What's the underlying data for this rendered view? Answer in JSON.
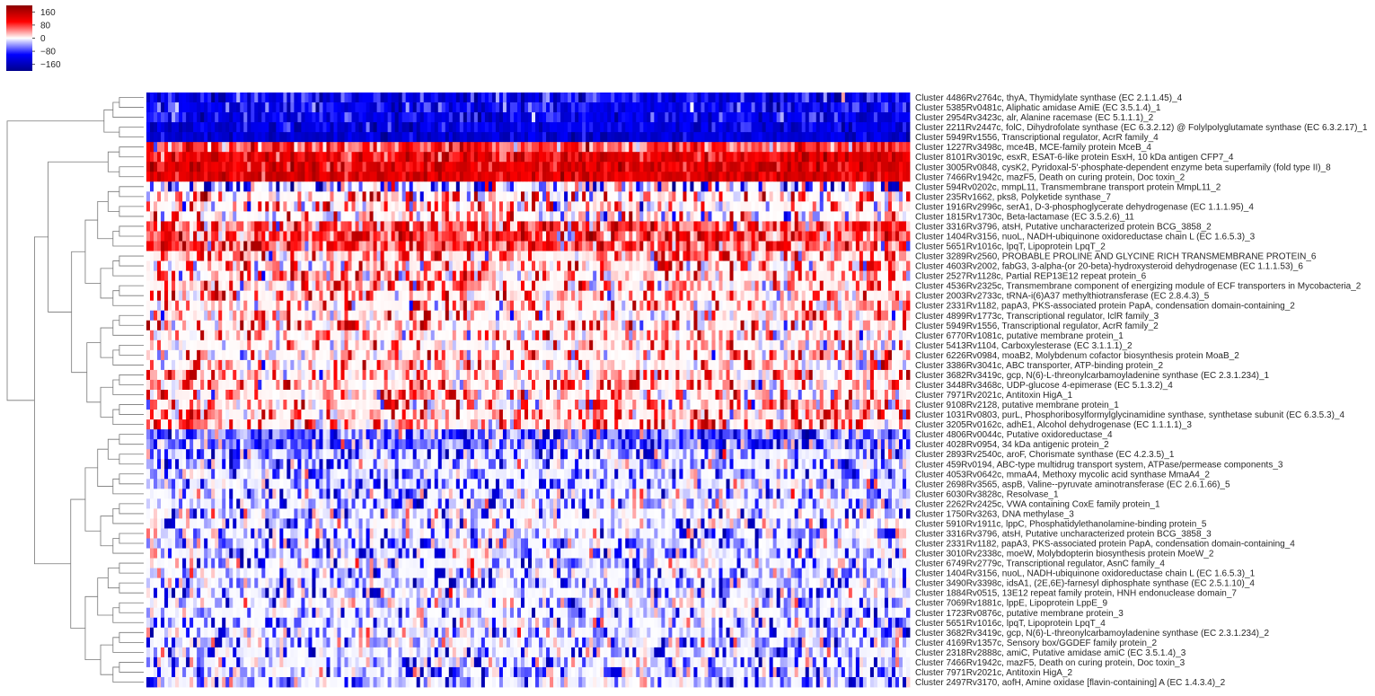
{
  "chart_data": {
    "type": "heatmap",
    "title": "",
    "xlabel": "",
    "ylabel": "",
    "column_count": 212,
    "row_clustering": true,
    "colorbar": {
      "position": "top-left",
      "ticks": [
        "160",
        "80",
        "0",
        "−80",
        "−160"
      ],
      "tick_values": [
        160,
        80,
        0,
        -80,
        -160
      ],
      "range": [
        -200,
        200
      ],
      "colors": {
        "low": "#00008b",
        "mid_low": "#0000ff",
        "mid": "#ffffff",
        "mid_high": "#ff0000",
        "high": "#8b0000"
      }
    },
    "rows": [
      {
        "label": "Cluster 4486Rv2764c, thyA, Thymidylate synthase (EC 2.1.1.45)_4",
        "mean": -110,
        "spread": 70
      },
      {
        "label": "Cluster 5385Rv0481c, Aliphatic amidase AmiE (EC 3.5.1.4)_1",
        "mean": -110,
        "spread": 60
      },
      {
        "label": "Cluster 2954Rv3423c, alr, Alanine racemase (EC 5.1.1.1)_2",
        "mean": -115,
        "spread": 60
      },
      {
        "label": "Cluster 2211Rv2447c, folC, Dihydrofolate synthase (EC 6.3.2.12) @ Folylpolyglutamate synthase (EC 6.3.2.17)_1",
        "mean": -125,
        "spread": 55
      },
      {
        "label": "Cluster 5949Rv1556, Transcriptional regulator, AcrR family_4",
        "mean": -140,
        "spread": 45
      },
      {
        "label": "Cluster 1227Rv3498c, mce4B, MCE-family protein MceB_4",
        "mean": 70,
        "spread": 70
      },
      {
        "label": "Cluster 8101Rv3019c, esxR, ESAT-6-like protein EsxH, 10 kDa antigen CFP7_4",
        "mean": 110,
        "spread": 60
      },
      {
        "label": "Cluster 3005Rv0848, cysK2, Pyridoxal-5'-phosphate-dependent enzyme beta superfamily (fold type II)_8",
        "mean": 120,
        "spread": 55
      },
      {
        "label": "Cluster 7466Rv1942c, mazF5, Death on curing protein, Doc toxin_2",
        "mean": 125,
        "spread": 55
      },
      {
        "label": "Cluster 594Rv0202c, mmpL11, Transmembrane transport protein MmpL11_2",
        "mean": -15,
        "spread": 140
      },
      {
        "label": "Cluster 235Rv1662, pks8, Polyketide synthase_7",
        "mean": 20,
        "spread": 120
      },
      {
        "label": "Cluster 1916Rv2996c, serA1, D-3-phosphoglycerate dehydrogenase (EC 1.1.1.95)_4",
        "mean": 25,
        "spread": 110
      },
      {
        "label": "Cluster 1815Rv1730c, Beta-lactamase (EC 3.5.2.6)_11",
        "mean": 15,
        "spread": 110
      },
      {
        "label": "Cluster 3316Rv3796, atsH, Putative uncharacterized protein BCG_3858_2",
        "mean": 60,
        "spread": 90
      },
      {
        "label": "Cluster 1404Rv3156, nuoL, NADH-ubiquinone oxidoreductase chain L (EC 1.6.5.3)_3",
        "mean": 65,
        "spread": 90
      },
      {
        "label": "Cluster 5651Rv1016c, lpqT, Lipoprotein LpqT_2",
        "mean": 60,
        "spread": 90
      },
      {
        "label": "Cluster 3289Rv2560, PROBABLE PROLINE AND GLYCINE RICH TRANSMEMBRANE PROTEIN_6",
        "mean": 45,
        "spread": 90
      },
      {
        "label": "Cluster 4603Rv2002, fabG3, 3-alpha-(or 20-beta)-hydroxysteroid dehydrogenase (EC 1.1.1.53)_6",
        "mean": 40,
        "spread": 90
      },
      {
        "label": "Cluster 2527Rv1128c, Partial REP13E12 repeat protein_6",
        "mean": 30,
        "spread": 90
      },
      {
        "label": "Cluster 4536Rv2325c, Transmembrane component of energizing module of ECF transporters in Mycobacteria_2",
        "mean": 35,
        "spread": 90
      },
      {
        "label": "Cluster 2003Rv2733c, tRNA-i(6)A37 methylthiotransferase (EC 2.8.4.3)_5",
        "mean": 30,
        "spread": 85
      },
      {
        "label": "Cluster 2331Rv1182, papA3, PKS-associated protein PapA, condensation domain-containing_2",
        "mean": 25,
        "spread": 85
      },
      {
        "label": "Cluster 4899Rv1773c, Transcriptional regulator, IclR family_3",
        "mean": 20,
        "spread": 80
      },
      {
        "label": "Cluster 5949Rv1556, Transcriptional regulator, AcrR family_2",
        "mean": 15,
        "spread": 80
      },
      {
        "label": "Cluster 6770Rv1081c, putative membrane protein_1",
        "mean": 20,
        "spread": 80
      },
      {
        "label": "Cluster 5413Rv1104, Carboxylesterase (EC 3.1.1.1)_2",
        "mean": 20,
        "spread": 80
      },
      {
        "label": "Cluster 6226Rv0984, moaB2, Molybdenum cofactor biosynthesis protein MoaB_2",
        "mean": 20,
        "spread": 80
      },
      {
        "label": "Cluster 3386Rv3041c, ABC transporter, ATP-binding protein_2",
        "mean": 20,
        "spread": 80
      },
      {
        "label": "Cluster 3682Rv3419c, gcp, N(6)-L-threonylcarbamoyladenine synthase (EC 2.3.1.234)_1",
        "mean": 25,
        "spread": 80
      },
      {
        "label": "Cluster 3448Rv3468c, UDP-glucose 4-epimerase (EC 5.1.3.2)_4",
        "mean": 25,
        "spread": 85
      },
      {
        "label": "Cluster 7971Rv2021c, Antitoxin HigA_1",
        "mean": 30,
        "spread": 85
      },
      {
        "label": "Cluster 9108Rv2128, putative membrane protein_1",
        "mean": 30,
        "spread": 85
      },
      {
        "label": "Cluster 1031Rv0803, purL, Phosphoribosylformylglycinamidine synthase, synthetase subunit (EC 6.3.5.3)_4",
        "mean": 40,
        "spread": 90
      },
      {
        "label": "Cluster 3205Rv0162c, adhE1, Alcohol dehydrogenase (EC 1.1.1.1)_3",
        "mean": 45,
        "spread": 90
      },
      {
        "label": "Cluster 4806Rv0044c, Putative oxidoreductase_4",
        "mean": -60,
        "spread": 90
      },
      {
        "label": "Cluster 4028Rv0954, 34 kDa antigenic protein_2",
        "mean": -50,
        "spread": 90
      },
      {
        "label": "Cluster 2893Rv2540c, aroF, Chorismate synthase (EC 4.2.3.5)_1",
        "mean": -45,
        "spread": 90
      },
      {
        "label": "Cluster 459Rv0194, ABC-type multidrug transport system, ATPase/permease components_3",
        "mean": -40,
        "spread": 85
      },
      {
        "label": "Cluster 4053Rv0642c, mmaA4, Methoxy mycolic acid synthase MmaA4_2",
        "mean": -40,
        "spread": 85
      },
      {
        "label": "Cluster 2698Rv3565, aspB, Valine--pyruvate aminotransferase (EC 2.6.1.66)_5",
        "mean": -35,
        "spread": 85
      },
      {
        "label": "Cluster 6030Rv3828c, Resolvase_1",
        "mean": -30,
        "spread": 80
      },
      {
        "label": "Cluster 2262Rv2425c, VWA containing CoxE family protein_1",
        "mean": -30,
        "spread": 80
      },
      {
        "label": "Cluster 1750Rv3263, DNA methylase_3",
        "mean": -15,
        "spread": 70
      },
      {
        "label": "Cluster 5910Rv1911c, lppC, Phosphatidylethanolamine-binding protein_5",
        "mean": -15,
        "spread": 70
      },
      {
        "label": "Cluster 3316Rv3796, atsH, Putative uncharacterized protein BCG_3858_3",
        "mean": -20,
        "spread": 75
      },
      {
        "label": "Cluster 2331Rv1182, papA3, PKS-associated protein PapA, condensation domain-containing_4",
        "mean": -30,
        "spread": 80
      },
      {
        "label": "Cluster 3010Rv2338c, moeW, Molybdopterin biosynthesis protein MoeW_2",
        "mean": -30,
        "spread": 80
      },
      {
        "label": "Cluster 6749Rv2779c, Transcriptional regulator, AsnC family_4",
        "mean": -25,
        "spread": 80
      },
      {
        "label": "Cluster 1404Rv3156, nuoL, NADH-ubiquinone oxidoreductase chain L (EC 1.6.5.3)_1",
        "mean": -25,
        "spread": 80
      },
      {
        "label": "Cluster 3490Rv3398c, idsA1, (2E,6E)-farnesyl diphosphate synthase (EC 2.5.1.10)_4",
        "mean": -25,
        "spread": 75
      },
      {
        "label": "Cluster 1884Rv0515, 13E12 repeat family protein, HNH endonuclease domain_7",
        "mean": -20,
        "spread": 75
      },
      {
        "label": "Cluster 7069Rv1881c, lppE, Lipoprotein LppE_9",
        "mean": -20,
        "spread": 75
      },
      {
        "label": "Cluster 1723Rv0876c, putative membrane protein_3",
        "mean": -20,
        "spread": 75
      },
      {
        "label": "Cluster 5651Rv1016c, lpqT, Lipoprotein LpqT_4",
        "mean": -25,
        "spread": 75
      },
      {
        "label": "Cluster 3682Rv3419c, gcp, N(6)-L-threonylcarbamoyladenine synthase (EC 2.3.1.234)_2",
        "mean": -25,
        "spread": 75
      },
      {
        "label": "Cluster 4169Rv1357c, Sensory box/GGDEF family protein_2",
        "mean": -25,
        "spread": 75
      },
      {
        "label": "Cluster 2318Rv2888c, amiC, Putative amidase amiC (EC 3.5.1.4)_3",
        "mean": -25,
        "spread": 75
      },
      {
        "label": "Cluster 7466Rv1942c, mazF5, Death on curing protein, Doc toxin_3",
        "mean": -30,
        "spread": 75
      },
      {
        "label": "Cluster 7971Rv2021c, Antitoxin HigA_2",
        "mean": -30,
        "spread": 75
      },
      {
        "label": "Cluster 2497Rv3170, aofH, Amine oxidase [flavin-containing] A (EC 1.4.3.4)_2",
        "mean": -30,
        "spread": 75
      }
    ]
  }
}
